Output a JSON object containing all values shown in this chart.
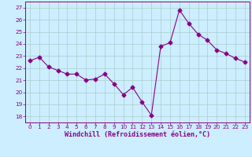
{
  "x": [
    0,
    1,
    2,
    3,
    4,
    5,
    6,
    7,
    8,
    9,
    10,
    11,
    12,
    13,
    14,
    15,
    16,
    17,
    18,
    19,
    20,
    21,
    22,
    23
  ],
  "y": [
    22.6,
    22.9,
    22.1,
    21.8,
    21.5,
    21.5,
    21.0,
    21.1,
    21.5,
    20.7,
    19.8,
    20.4,
    19.2,
    18.1,
    23.8,
    24.1,
    26.8,
    25.7,
    24.8,
    24.3,
    23.5,
    23.2,
    22.8,
    22.5
  ],
  "line_color": "#880088",
  "marker": "D",
  "markersize": 2.5,
  "linewidth": 0.8,
  "bg_color": "#cceeff",
  "grid_color": "#aacccc",
  "xlabel": "Windchill (Refroidissement éolien,°C)",
  "xlabel_color": "#880088",
  "tick_color": "#880088",
  "spine_color": "#880088",
  "ylim": [
    17.5,
    27.5
  ],
  "yticks": [
    18,
    19,
    20,
    21,
    22,
    23,
    24,
    25,
    26,
    27
  ],
  "xlim": [
    -0.5,
    23.5
  ],
  "xticks": [
    0,
    1,
    2,
    3,
    4,
    5,
    6,
    7,
    8,
    9,
    10,
    11,
    12,
    13,
    14,
    15,
    16,
    17,
    18,
    19,
    20,
    21,
    22,
    23
  ],
  "tick_fontsize": 5.2,
  "xlabel_fontsize": 6.0
}
